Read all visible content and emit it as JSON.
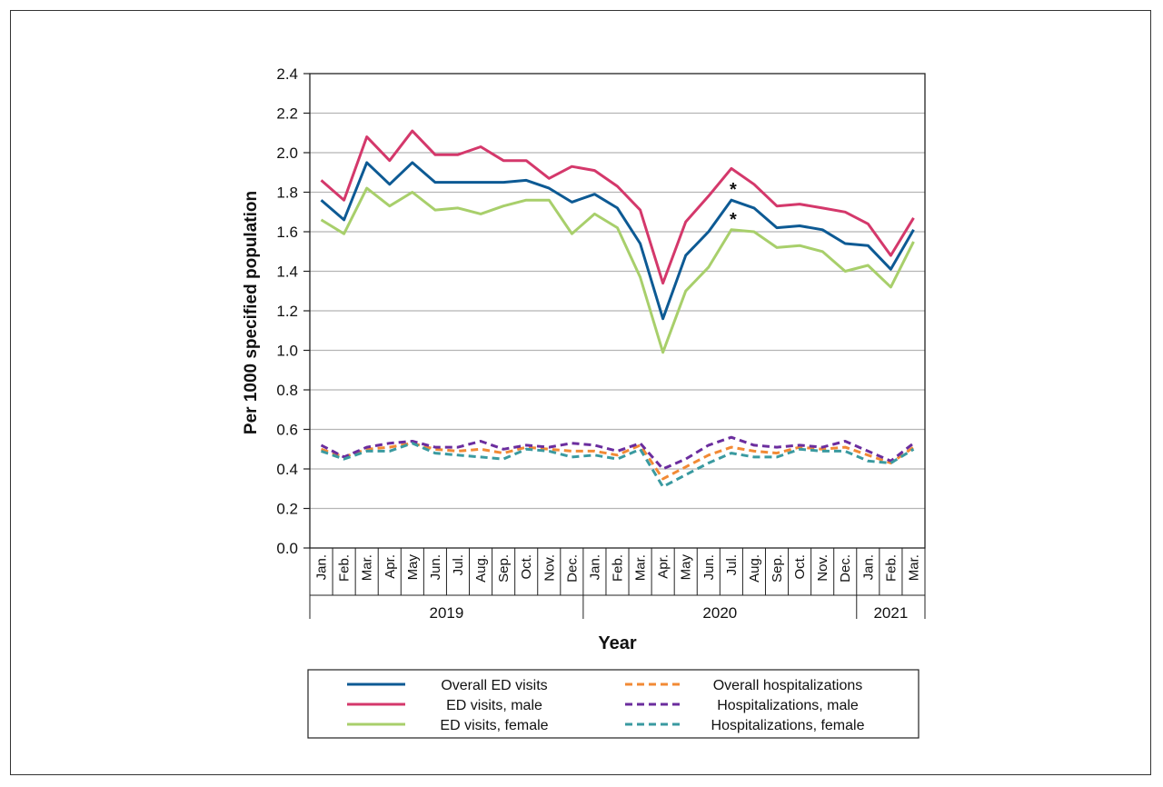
{
  "chart_data": {
    "type": "line",
    "xlabel": "Year",
    "ylabel": "Per 1000 specified population",
    "ylim": [
      0,
      2.4
    ],
    "yticks": [
      "0.0",
      "0.2",
      "0.4",
      "0.6",
      "0.8",
      "1.0",
      "1.2",
      "1.4",
      "1.6",
      "1.8",
      "2.0",
      "2.2",
      "2.4"
    ],
    "grid": true,
    "categories": [
      "Jan.",
      "Feb.",
      "Mar.",
      "Apr.",
      "May",
      "Jun.",
      "Jul.",
      "Aug.",
      "Sep.",
      "Oct.",
      "Nov.",
      "Dec.",
      "Jan.",
      "Feb.",
      "Mar.",
      "Apr.",
      "May",
      "Jun.",
      "Jul.",
      "Aug.",
      "Sep.",
      "Oct.",
      "Nov.",
      "Dec.",
      "Jan.",
      "Feb.",
      "Mar."
    ],
    "year_groups": [
      {
        "label": "2019",
        "start": 0,
        "count": 12
      },
      {
        "label": "2020",
        "start": 12,
        "count": 12
      },
      {
        "label": "2021",
        "start": 24,
        "count": 3
      }
    ],
    "series": [
      {
        "name": "Overall ED visits",
        "color": "#0d5a94",
        "dashed": false,
        "values": [
          1.76,
          1.66,
          1.95,
          1.84,
          1.95,
          1.85,
          1.85,
          1.85,
          1.85,
          1.86,
          1.82,
          1.75,
          1.79,
          1.72,
          1.54,
          1.16,
          1.48,
          1.6,
          1.76,
          1.72,
          1.62,
          1.63,
          1.61,
          1.54,
          1.53,
          1.41,
          1.61
        ]
      },
      {
        "name": "ED visits, male",
        "color": "#d4386b",
        "dashed": false,
        "values": [
          1.86,
          1.76,
          2.08,
          1.96,
          2.11,
          1.99,
          1.99,
          2.03,
          1.96,
          1.96,
          1.87,
          1.93,
          1.91,
          1.83,
          1.71,
          1.34,
          1.65,
          1.78,
          1.92,
          1.84,
          1.73,
          1.74,
          1.72,
          1.7,
          1.64,
          1.48,
          1.67
        ]
      },
      {
        "name": "ED visits, female",
        "color": "#a8cf6b",
        "dashed": false,
        "values": [
          1.66,
          1.59,
          1.82,
          1.73,
          1.8,
          1.71,
          1.72,
          1.69,
          1.73,
          1.76,
          1.76,
          1.59,
          1.69,
          1.62,
          1.37,
          0.99,
          1.3,
          1.42,
          1.61,
          1.6,
          1.52,
          1.53,
          1.5,
          1.4,
          1.43,
          1.32,
          1.55
        ]
      },
      {
        "name": "Overall hospitalizations",
        "color": "#f28a35",
        "dashed": true,
        "values": [
          0.5,
          0.46,
          0.5,
          0.51,
          0.53,
          0.5,
          0.49,
          0.5,
          0.48,
          0.51,
          0.5,
          0.49,
          0.49,
          0.47,
          0.52,
          0.35,
          0.41,
          0.47,
          0.51,
          0.49,
          0.48,
          0.51,
          0.5,
          0.51,
          0.47,
          0.43,
          0.51
        ]
      },
      {
        "name": "Hospitalizations, male",
        "color": "#6b2d9e",
        "dashed": true,
        "values": [
          0.52,
          0.46,
          0.51,
          0.53,
          0.54,
          0.51,
          0.51,
          0.54,
          0.5,
          0.52,
          0.51,
          0.53,
          0.52,
          0.49,
          0.53,
          0.4,
          0.45,
          0.52,
          0.56,
          0.52,
          0.51,
          0.52,
          0.51,
          0.54,
          0.49,
          0.44,
          0.53
        ]
      },
      {
        "name": "Hospitalizations, female",
        "color": "#3a9aa0",
        "dashed": true,
        "values": [
          0.49,
          0.45,
          0.49,
          0.49,
          0.53,
          0.48,
          0.47,
          0.46,
          0.45,
          0.5,
          0.49,
          0.46,
          0.47,
          0.45,
          0.5,
          0.31,
          0.37,
          0.43,
          0.48,
          0.46,
          0.46,
          0.5,
          0.49,
          0.49,
          0.44,
          0.43,
          0.5
        ]
      }
    ],
    "annotations": [
      {
        "text": "*",
        "category_index": 18,
        "series": "Overall ED visits"
      },
      {
        "text": "*",
        "category_index": 18,
        "series": "ED visits, female"
      }
    ],
    "legend": {
      "placement": "bottom",
      "columns": 2
    }
  }
}
